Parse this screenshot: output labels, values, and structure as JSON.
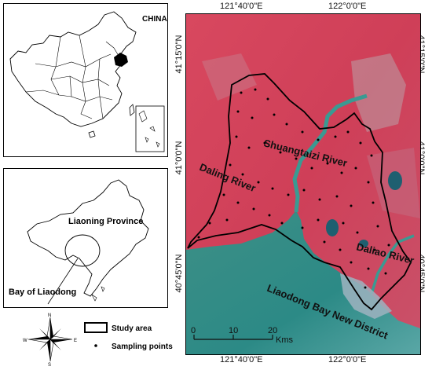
{
  "china_panel": {
    "label": "CHINA"
  },
  "province_panel": {
    "province_label": "Liaoning Province",
    "bay_label": "Bay of Liaodong"
  },
  "main_map": {
    "top_lon": [
      "121°40'0\"E",
      "122°0'0\"E"
    ],
    "bottom_lon": [
      "121°40'0\"E",
      "122°0'0\"E"
    ],
    "left_lat": [
      "41°15'0\"N",
      "41°0'0\"N",
      "40°45'0\"N"
    ],
    "right_lat": [
      "41°15'0\"N",
      "41°0'0\"N",
      "40°45'0\"N"
    ],
    "labels": {
      "shuangtaizi": "Shuangtaizi River",
      "daling": "Daling River",
      "daliao": "Daliao River",
      "liaodong_bay": "Liaodong Bay New District"
    },
    "scale_ticks": [
      "0",
      "10",
      "20"
    ],
    "scale_unit": "Kms",
    "colors": {
      "land": "#d9405a",
      "sea": "#2f8f86",
      "river": "#3a9a92",
      "boundary": "#000000"
    }
  },
  "legend": {
    "compass_letters": {
      "n": "N",
      "s": "S",
      "e": "E",
      "w": "W"
    },
    "items": [
      {
        "symbol": "rectangle",
        "label": "Study area"
      },
      {
        "symbol": "dot",
        "label": "Sampling points"
      }
    ]
  }
}
